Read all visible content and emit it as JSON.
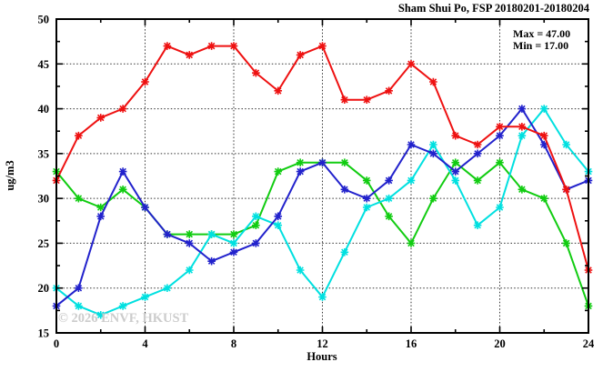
{
  "title": "Sham Shui Po, FSP 20180201-20180204",
  "annotation": {
    "max_label": "Max = 47.00",
    "min_label": "Min = 17.00"
  },
  "watermark": "© 2026 ENVF, HKUST",
  "colors": {
    "series_red": "#ee1111",
    "series_blue": "#2222cc",
    "series_green": "#11cc11",
    "series_cyan": "#00e0e0",
    "grid": "#333333",
    "axis": "#000000",
    "watermark": "#cccccc"
  },
  "chart_data": {
    "type": "line",
    "title": "Sham Shui Po, FSP 20180201-20180204",
    "xlabel": "Hours",
    "ylabel": "ug/m3",
    "xlim": [
      0,
      24
    ],
    "ylim": [
      15,
      50
    ],
    "x_major_ticks": [
      0,
      4,
      8,
      12,
      16,
      20,
      24
    ],
    "x_minor_step": 2,
    "y_major_ticks": [
      15,
      20,
      25,
      30,
      35,
      40,
      45,
      50
    ],
    "y_minor_step": 2.5,
    "grid": true,
    "legend_position": "none",
    "annotations": [
      "Max = 47.00",
      "Min = 17.00"
    ],
    "x": [
      0,
      1,
      2,
      3,
      4,
      5,
      6,
      7,
      8,
      9,
      10,
      11,
      12,
      13,
      14,
      15,
      16,
      17,
      18,
      19,
      20,
      21,
      22,
      23,
      24
    ],
    "series": [
      {
        "name": "green",
        "color": "#11cc11",
        "values": [
          33,
          30,
          29,
          31,
          29,
          26,
          26,
          26,
          26,
          27,
          33,
          34,
          34,
          34,
          32,
          28,
          25,
          30,
          34,
          32,
          34,
          31,
          30,
          25,
          18
        ]
      },
      {
        "name": "cyan",
        "color": "#00e0e0",
        "values": [
          20,
          18,
          17,
          18,
          19,
          20,
          22,
          26,
          25,
          28,
          27,
          22,
          19,
          24,
          29,
          30,
          32,
          36,
          32,
          27,
          29,
          37,
          40,
          36,
          33
        ]
      },
      {
        "name": "blue",
        "color": "#2222cc",
        "values": [
          18,
          20,
          28,
          33,
          29,
          26,
          25,
          23,
          24,
          25,
          28,
          33,
          34,
          31,
          30,
          32,
          36,
          35,
          33,
          35,
          37,
          40,
          36,
          31,
          32
        ]
      },
      {
        "name": "red",
        "color": "#ee1111",
        "values": [
          32,
          37,
          39,
          40,
          43,
          47,
          46,
          47,
          47,
          44,
          42,
          46,
          47,
          41,
          41,
          42,
          45,
          43,
          37,
          36,
          38,
          38,
          37,
          31,
          22
        ]
      }
    ],
    "stats": {
      "max": 47.0,
      "min": 17.0
    }
  }
}
